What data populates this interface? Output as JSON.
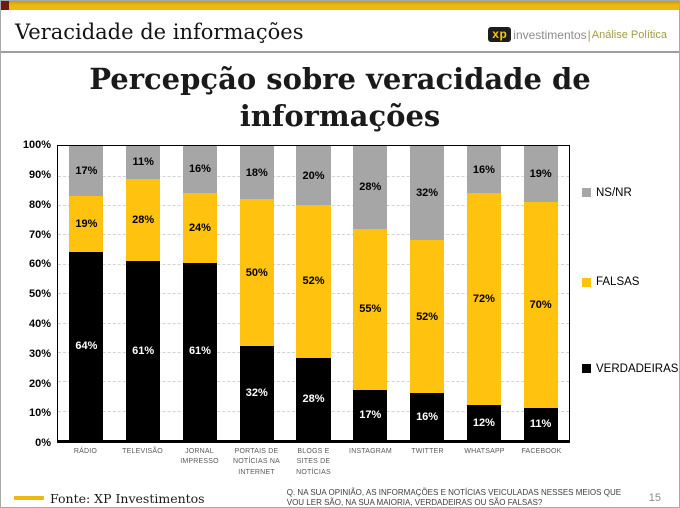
{
  "header": {
    "title": "Veracidade de informações",
    "logo": {
      "mark": "xp",
      "brand": "investimentos",
      "divider": "|",
      "sub": "Análise Política"
    }
  },
  "main_title": "Percepção sobre veracidade de informações",
  "chart_data": {
    "type": "bar",
    "stacked": true,
    "title": "Percepção sobre veracidade de informações",
    "categories": [
      "RÁDIO",
      "TELEVISÃO",
      "JORNAL IMPRESSO",
      "PORTAIS DE NOTÍCIAS NA INTERNET",
      "BLOGS E SITES DE NOTÍCIAS",
      "INSTAGRAM",
      "TWITTER",
      "WHATSAPP",
      "FACEBOOK"
    ],
    "series": [
      {
        "name": "VERDADEIRAS",
        "color": "#000000",
        "label_color": "#ffffff",
        "values": [
          64,
          61,
          61,
          32,
          28,
          17,
          16,
          12,
          11
        ]
      },
      {
        "name": "FALSAS",
        "color": "#ffc20e",
        "label_color": "#000000",
        "values": [
          19,
          28,
          24,
          50,
          52,
          55,
          52,
          72,
          70
        ]
      },
      {
        "name": "NS/NR",
        "color": "#a6a6a6",
        "label_color": "#000000",
        "values": [
          17,
          11,
          16,
          18,
          20,
          28,
          32,
          16,
          19
        ]
      }
    ],
    "value_suffix": "%",
    "y_ticks": [
      "100%",
      "90%",
      "80%",
      "70%",
      "60%",
      "50%",
      "40%",
      "30%",
      "20%",
      "10%",
      "0%"
    ],
    "ylim": [
      0,
      100
    ],
    "grid": "horizontal-dashed",
    "legend_position": "right",
    "legend_order": [
      "NS/NR",
      "FALSAS",
      "VERDADEIRAS"
    ],
    "legend_tops_pct": [
      16,
      46,
      75
    ]
  },
  "footer": {
    "source": "Fonte: XP Investimentos",
    "question": "Q. NA SUA OPINIÃO, AS INFORMAÇÕES E NOTÍCIAS VEICULADAS NESSES MEIOS QUE VOU LER SÃO, NA SUA MAIORIA, VERDADEIRAS OU SÃO FALSAS?",
    "page_number": "15"
  },
  "colors": {
    "accent_gold": "#ffc20e",
    "top_bar_gold": "#edb90f",
    "corner_accent": "#6e1a12",
    "series_black": "#000000",
    "series_yellow": "#ffc20e",
    "series_gray": "#a6a6a6",
    "grid_gray": "#d2d2d2"
  }
}
